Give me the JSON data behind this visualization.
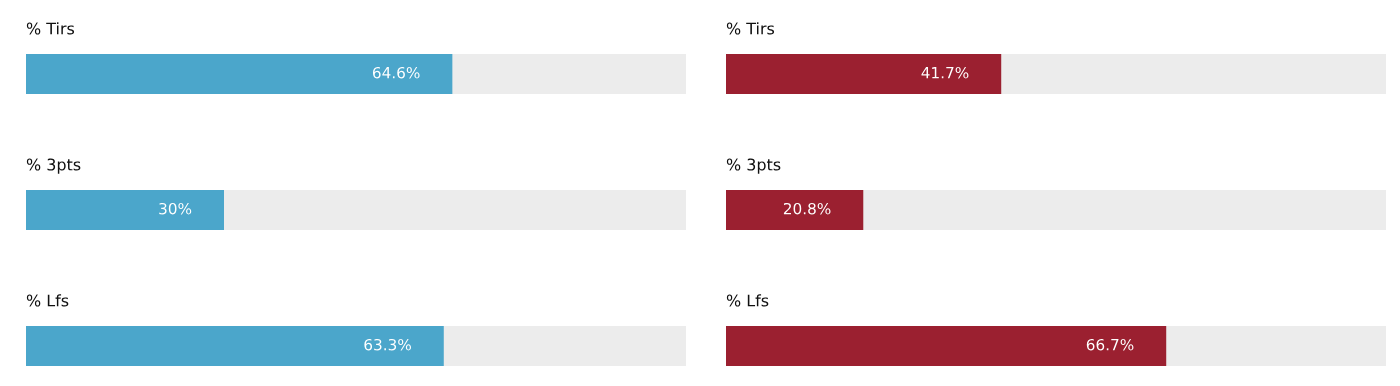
{
  "chart_data": [
    {
      "type": "bar",
      "orientation": "horizontal",
      "categories": [
        "% Tirs",
        "% 3pts",
        "% Lfs"
      ],
      "values": [
        64.6,
        30,
        63.3
      ],
      "value_labels": [
        "64.6%",
        "30%",
        "63.3%"
      ],
      "color": "#4ba6cb",
      "xlim": [
        0,
        100
      ]
    },
    {
      "type": "bar",
      "orientation": "horizontal",
      "categories": [
        "% Tirs",
        "% 3pts",
        "% Lfs"
      ],
      "values": [
        41.7,
        20.8,
        66.7
      ],
      "value_labels": [
        "41.7%",
        "20.8%",
        "66.7%"
      ],
      "color": "#9b2030",
      "xlim": [
        0,
        100
      ]
    }
  ]
}
